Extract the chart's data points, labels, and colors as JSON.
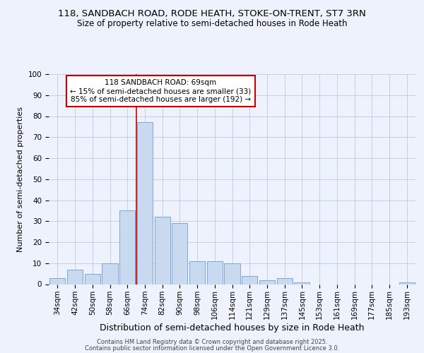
{
  "title1": "118, SANDBACH ROAD, RODE HEATH, STOKE-ON-TRENT, ST7 3RN",
  "title2": "Size of property relative to semi-detached houses in Rode Heath",
  "xlabel": "Distribution of semi-detached houses by size in Rode Heath",
  "ylabel": "Number of semi-detached properties",
  "categories": [
    "34sqm",
    "42sqm",
    "50sqm",
    "58sqm",
    "66sqm",
    "74sqm",
    "82sqm",
    "90sqm",
    "98sqm",
    "106sqm",
    "114sqm",
    "121sqm",
    "129sqm",
    "137sqm",
    "145sqm",
    "153sqm",
    "161sqm",
    "169sqm",
    "177sqm",
    "185sqm",
    "193sqm"
  ],
  "values": [
    3,
    7,
    5,
    10,
    35,
    77,
    32,
    29,
    11,
    11,
    10,
    4,
    2,
    3,
    1,
    0,
    0,
    0,
    0,
    0,
    1
  ],
  "bar_color": "#c8d9f0",
  "bar_edge_color": "#7aa8d8",
  "vline_x": 4.5,
  "vline_color": "#cc0000",
  "annotation_title": "118 SANDBACH ROAD: 69sqm",
  "annotation_line1": "← 15% of semi-detached houses are smaller (33)",
  "annotation_line2": "85% of semi-detached houses are larger (192) →",
  "annotation_box_color": "#cc0000",
  "footer1": "Contains HM Land Registry data © Crown copyright and database right 2025.",
  "footer2": "Contains public sector information licensed under the Open Government Licence 3.0.",
  "ylim": [
    0,
    100
  ],
  "background_color": "#eef2fc",
  "title_fontsize": 9.5,
  "subtitle_fontsize": 8.5,
  "tick_fontsize": 7.5,
  "ylabel_fontsize": 8.0,
  "xlabel_fontsize": 9.0,
  "annot_fontsize": 7.5,
  "footer_fontsize": 6.0
}
